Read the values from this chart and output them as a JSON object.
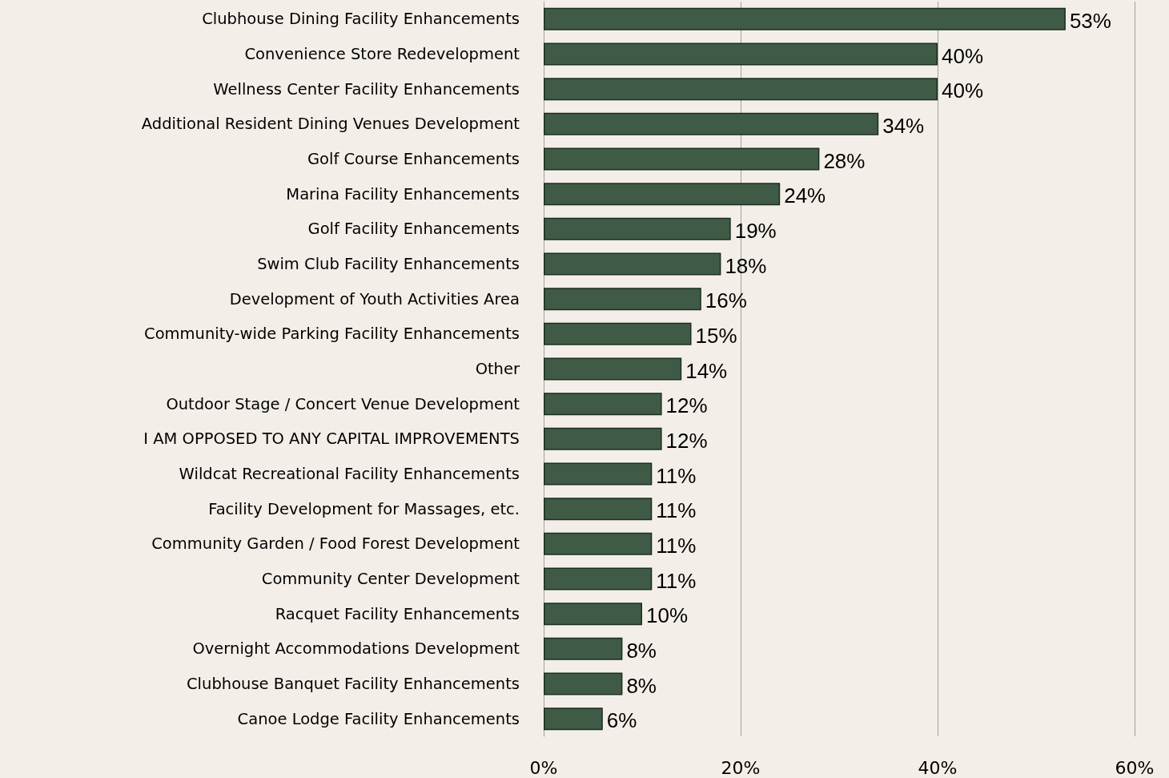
{
  "chart_data": {
    "type": "bar",
    "orientation": "horizontal",
    "categories": [
      "Clubhouse Dining Facility Enhancements",
      "Convenience Store Redevelopment",
      "Wellness Center Facility Enhancements",
      "Additional Resident Dining Venues Development",
      "Golf Course Enhancements",
      "Marina Facility Enhancements",
      "Golf Facility Enhancements",
      "Swim Club Facility Enhancements",
      "Development of Youth Activities Area",
      "Community-wide Parking Facility Enhancements",
      "Other",
      "Outdoor Stage / Concert Venue Development",
      "I AM OPPOSED TO ANY CAPITAL IMPROVEMENTS",
      "Wildcat Recreational Facility Enhancements",
      "Facility Development for Massages, etc.",
      "Community Garden / Food Forest Development",
      "Community Center Development",
      "Racquet Facility Enhancements",
      "Overnight Accommodations Development",
      "Clubhouse Banquet Facility Enhancements",
      "Canoe Lodge Facility Enhancements"
    ],
    "values": [
      53,
      40,
      40,
      34,
      28,
      24,
      19,
      18,
      16,
      15,
      14,
      12,
      12,
      11,
      11,
      11,
      11,
      10,
      8,
      8,
      6
    ],
    "value_labels": [
      "53%",
      "40%",
      "40%",
      "34%",
      "28%",
      "24%",
      "19%",
      "18%",
      "16%",
      "15%",
      "14%",
      "12%",
      "12%",
      "11%",
      "11%",
      "11%",
      "11%",
      "10%",
      "8%",
      "8%",
      "6%"
    ],
    "color": "#3f5b46",
    "xlim": [
      0,
      60
    ],
    "xticks": [
      {
        "value": 0,
        "label": "0%"
      },
      {
        "value": 20,
        "label": "20%"
      },
      {
        "value": 40,
        "label": "40%"
      },
      {
        "value": 60,
        "label": "60%"
      }
    ],
    "grid": "x"
  }
}
